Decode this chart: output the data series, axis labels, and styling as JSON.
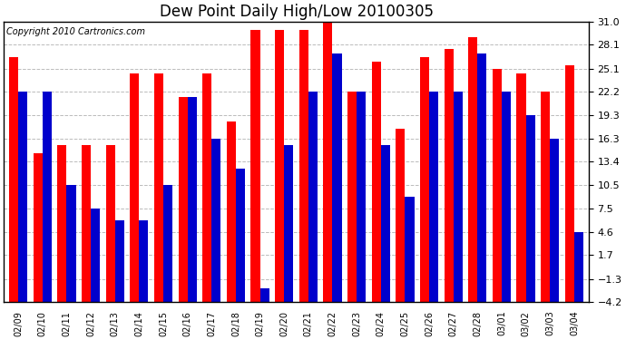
{
  "title": "Dew Point Daily High/Low 20100305",
  "copyright": "Copyright 2010 Cartronics.com",
  "dates": [
    "02/09",
    "02/10",
    "02/11",
    "02/12",
    "02/13",
    "02/14",
    "02/15",
    "02/16",
    "02/17",
    "02/18",
    "02/19",
    "02/20",
    "02/21",
    "02/22",
    "02/23",
    "02/24",
    "02/25",
    "02/26",
    "02/27",
    "02/28",
    "03/01",
    "03/02",
    "03/03",
    "03/04"
  ],
  "highs": [
    26.5,
    14.5,
    15.5,
    15.5,
    15.5,
    24.5,
    24.5,
    21.5,
    24.5,
    18.5,
    30.0,
    30.0,
    30.0,
    32.0,
    22.2,
    26.0,
    17.5,
    26.5,
    27.5,
    29.0,
    25.1,
    24.5,
    22.2,
    25.5
  ],
  "lows": [
    22.2,
    22.2,
    10.5,
    7.5,
    6.0,
    6.0,
    10.5,
    21.5,
    16.3,
    12.5,
    -2.5,
    15.5,
    22.2,
    27.0,
    22.2,
    15.5,
    9.0,
    22.2,
    22.2,
    27.0,
    22.2,
    19.3,
    16.3,
    4.6
  ],
  "high_color": "#ff0000",
  "low_color": "#0000cc",
  "bg_color": "#ffffff",
  "grid_color": "#bbbbbb",
  "yticks": [
    31.0,
    28.1,
    25.1,
    22.2,
    19.3,
    16.3,
    13.4,
    10.5,
    7.5,
    4.6,
    1.7,
    -1.3,
    -4.2
  ],
  "ymin": -4.2,
  "ymax": 31.0,
  "title_fontsize": 12,
  "copyright_fontsize": 7,
  "bar_width": 0.38,
  "figwidth": 6.9,
  "figheight": 3.75
}
